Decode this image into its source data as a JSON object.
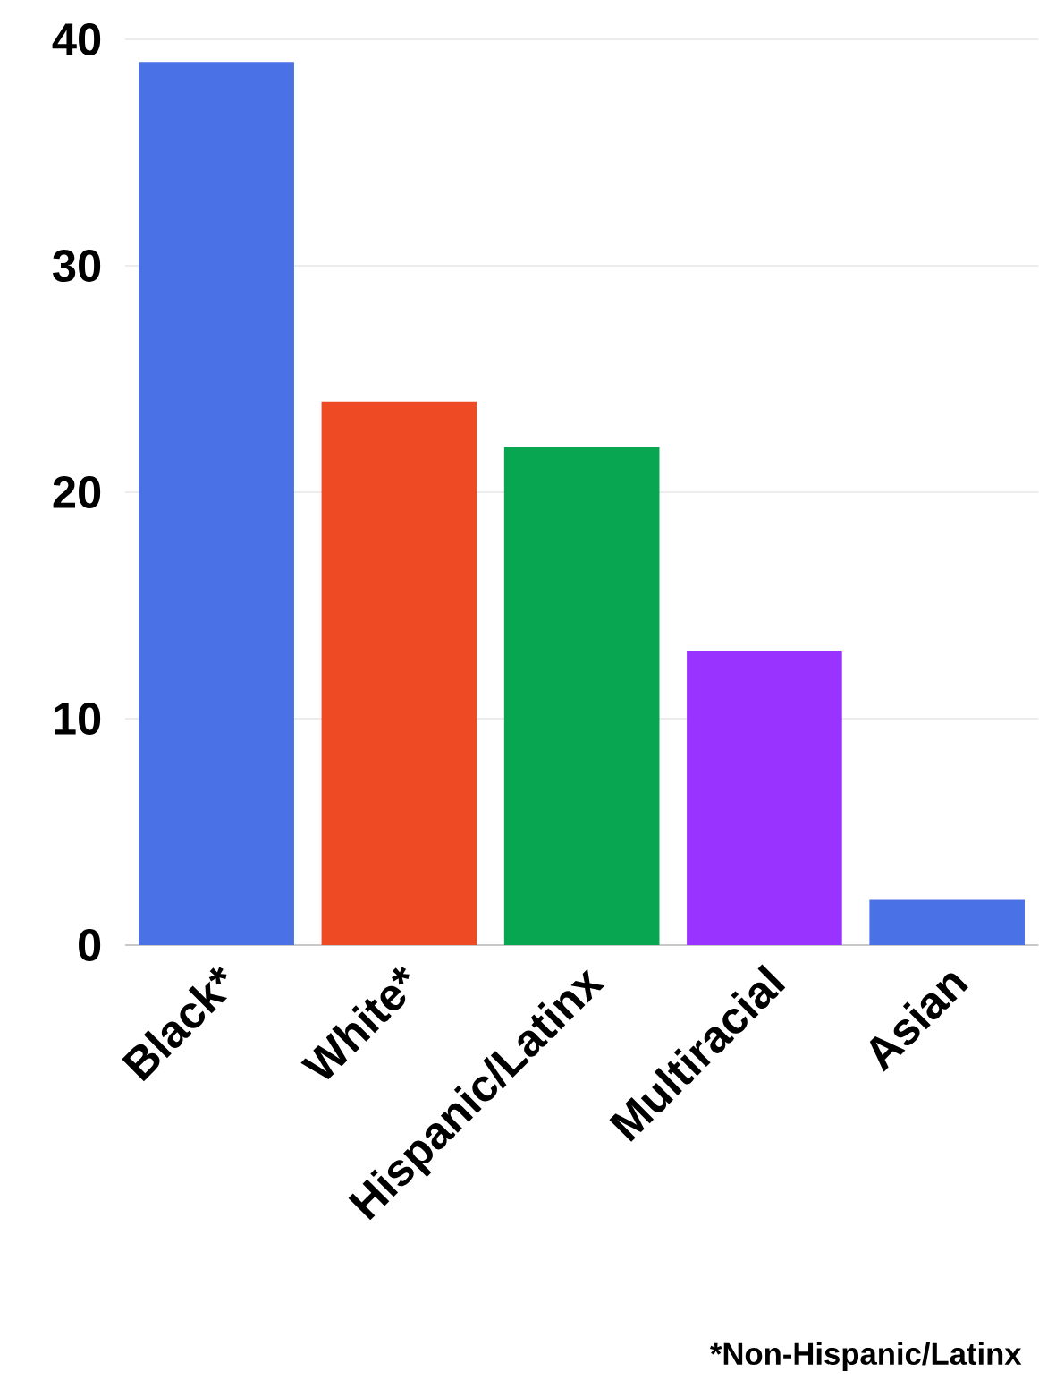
{
  "chart_data": {
    "type": "bar",
    "categories": [
      "Black*",
      "White*",
      "Hispanic/Latinx",
      "Multiracial",
      "Asian"
    ],
    "values": [
      39,
      24,
      22,
      13,
      2
    ],
    "colors": [
      "#4a72e6",
      "#ee4b25",
      "#08a651",
      "#9933ff",
      "#4a72e6"
    ],
    "ylim": [
      0,
      40
    ],
    "yticks": [
      0,
      10,
      20,
      30,
      40
    ],
    "grid": "y",
    "annotations": [
      "*Non-Hispanic/Latinx"
    ]
  }
}
